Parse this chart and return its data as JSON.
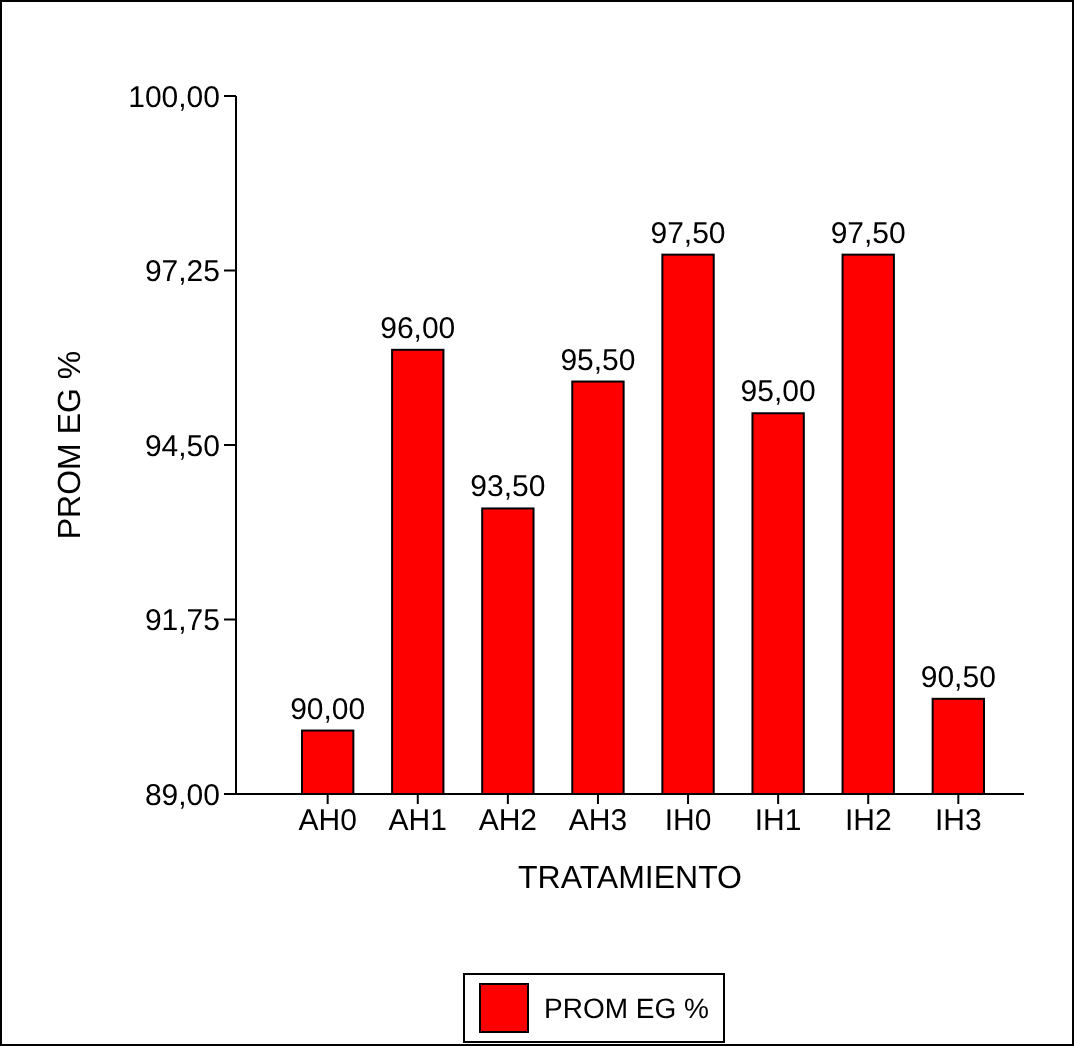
{
  "chart_data": {
    "type": "bar",
    "xlabel": "TRATAMIENTO",
    "ylabel": "PROM EG %",
    "categories": [
      "AH0",
      "AH1",
      "AH2",
      "AH3",
      "IH0",
      "IH1",
      "IH2",
      "IH3"
    ],
    "series": [
      {
        "name": "PROM EG %",
        "color": "#ff0000",
        "values": [
          90,
          96,
          93.5,
          95.5,
          97.5,
          95,
          97.5,
          90.5
        ],
        "value_labels": [
          "90,00",
          "96,00",
          "93,50",
          "95,50",
          "97,50",
          "95,00",
          "97,50",
          "90,50"
        ]
      }
    ],
    "ylim": [
      89,
      100
    ],
    "yticks": [
      {
        "value": 89,
        "label": "89,00"
      },
      {
        "value": 91.75,
        "label": "91,75"
      },
      {
        "value": 94.5,
        "label": "94,50"
      },
      {
        "value": 97.25,
        "label": "97,25"
      },
      {
        "value": 100,
        "label": "100,00"
      }
    ],
    "grid": false,
    "legend": "bottom"
  }
}
